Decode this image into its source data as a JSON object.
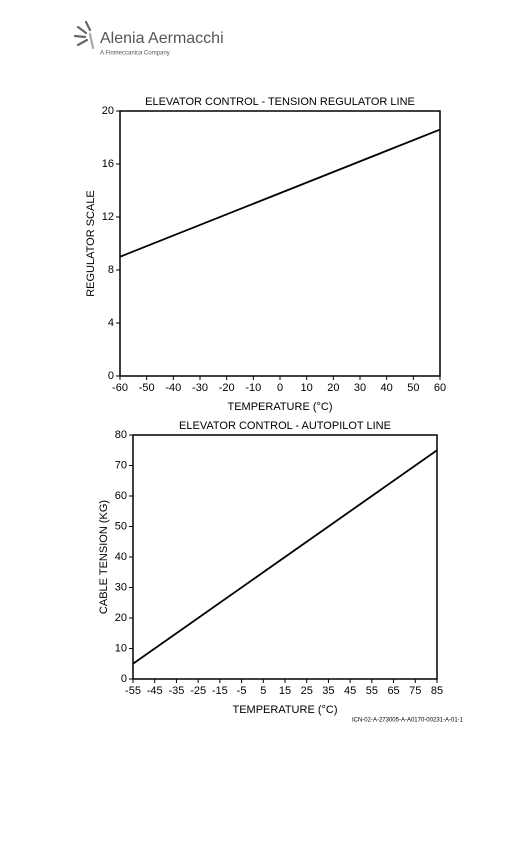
{
  "header": {
    "brand": "Alenia Aermacchi",
    "tagline": "A Finmeccanica Company"
  },
  "chart_data": [
    {
      "type": "line",
      "title": "ELEVATOR CONTROL - TENSION REGULATOR LINE",
      "x_label": "TEMPERATURE (°C)",
      "y_label": "REGULATOR SCALE",
      "x": [
        -60,
        60
      ],
      "values": [
        9,
        18.6
      ],
      "color": "#000000",
      "xlim": [
        -60,
        60
      ],
      "xticks": [
        -60,
        -50,
        -40,
        -30,
        -20,
        -10,
        0,
        10,
        20,
        30,
        40,
        50,
        60
      ],
      "ylim": [
        0,
        20
      ],
      "yticks": [
        0,
        4,
        8,
        12,
        16,
        20
      ],
      "grid": false
    },
    {
      "type": "line",
      "title": "ELEVATOR CONTROL - AUTOPILOT LINE",
      "x_label": "TEMPERATURE (°C)",
      "y_label": "CABLE TENSION (KG)",
      "x": [
        -55,
        85
      ],
      "values": [
        5,
        75
      ],
      "color": "#000000",
      "xlim": [
        -55,
        85
      ],
      "xticks": [
        -55,
        -45,
        -35,
        -25,
        -15,
        -5,
        5,
        15,
        25,
        35,
        45,
        55,
        65,
        75,
        85
      ],
      "ylim": [
        0,
        80
      ],
      "yticks": [
        0,
        10,
        20,
        30,
        40,
        50,
        60,
        70,
        80
      ],
      "grid": false
    }
  ],
  "footer": {
    "reference": "ICN-02-A-273005-A-A0170-00231-A-01-1"
  }
}
